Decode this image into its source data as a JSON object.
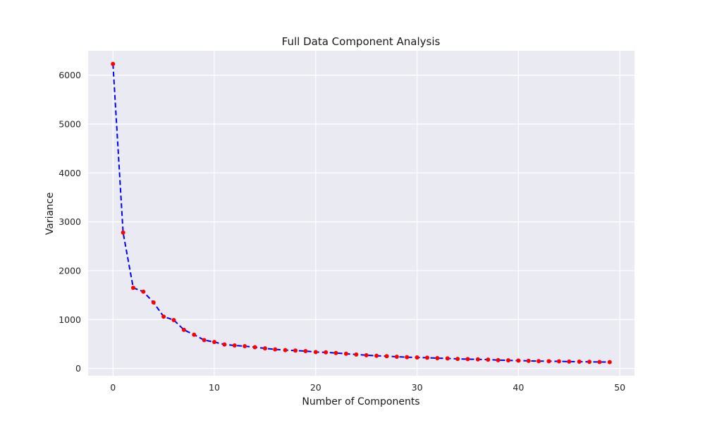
{
  "chart_data": {
    "type": "line",
    "title": "Full Data Component Analysis",
    "xlabel": "Number of Components",
    "ylabel": "Variance",
    "xlim": [
      -2.45,
      51.45
    ],
    "ylim": [
      -150,
      6500
    ],
    "xticks": [
      0,
      10,
      20,
      30,
      40,
      50
    ],
    "yticks": [
      0,
      1000,
      2000,
      3000,
      4000,
      5000,
      6000
    ],
    "grid": true,
    "background": "#EAEAF2",
    "grid_color": "#ffffff",
    "line_color": "#0000ff",
    "line_style": "dashed",
    "marker_color": "#ff0000",
    "x": [
      0,
      1,
      2,
      3,
      4,
      5,
      6,
      7,
      8,
      9,
      10,
      11,
      12,
      13,
      14,
      15,
      16,
      17,
      18,
      19,
      20,
      21,
      22,
      23,
      24,
      25,
      26,
      27,
      28,
      29,
      30,
      31,
      32,
      33,
      34,
      35,
      36,
      37,
      38,
      39,
      40,
      41,
      42,
      43,
      44,
      45,
      46,
      47,
      48,
      49
    ],
    "values": [
      6230,
      2780,
      1650,
      1570,
      1350,
      1060,
      990,
      790,
      690,
      580,
      540,
      490,
      470,
      455,
      435,
      410,
      390,
      375,
      365,
      355,
      335,
      330,
      315,
      300,
      285,
      270,
      260,
      250,
      240,
      230,
      225,
      220,
      210,
      205,
      195,
      190,
      185,
      180,
      170,
      165,
      160,
      155,
      150,
      148,
      145,
      140,
      138,
      135,
      132,
      130
    ]
  }
}
